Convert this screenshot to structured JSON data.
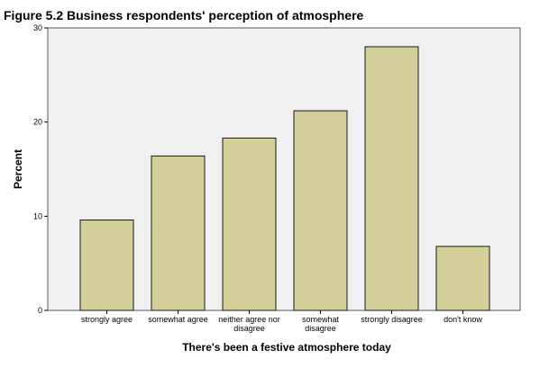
{
  "chart_data": {
    "type": "bar",
    "title": "Figure 5.2 Business respondents' perception of atmosphere",
    "xlabel": "There's been a festive atmosphere today",
    "ylabel": "Percent",
    "categories": [
      [
        "strongly agree"
      ],
      [
        "somewhat agree"
      ],
      [
        "neither agree nor",
        "disagree"
      ],
      [
        "somewhat",
        "disagree"
      ],
      [
        "strongly disagree"
      ],
      [
        "don't know"
      ]
    ],
    "values": [
      9.6,
      16.4,
      18.3,
      21.2,
      28.0,
      6.8
    ],
    "ylim": [
      0,
      30
    ],
    "yticks": [
      0,
      10,
      20,
      30
    ],
    "grid": false,
    "colors": {
      "bar_fill": "#d4cf99",
      "bar_stroke": "#1a1a1a",
      "plot_background": "#f0f0f0"
    }
  }
}
